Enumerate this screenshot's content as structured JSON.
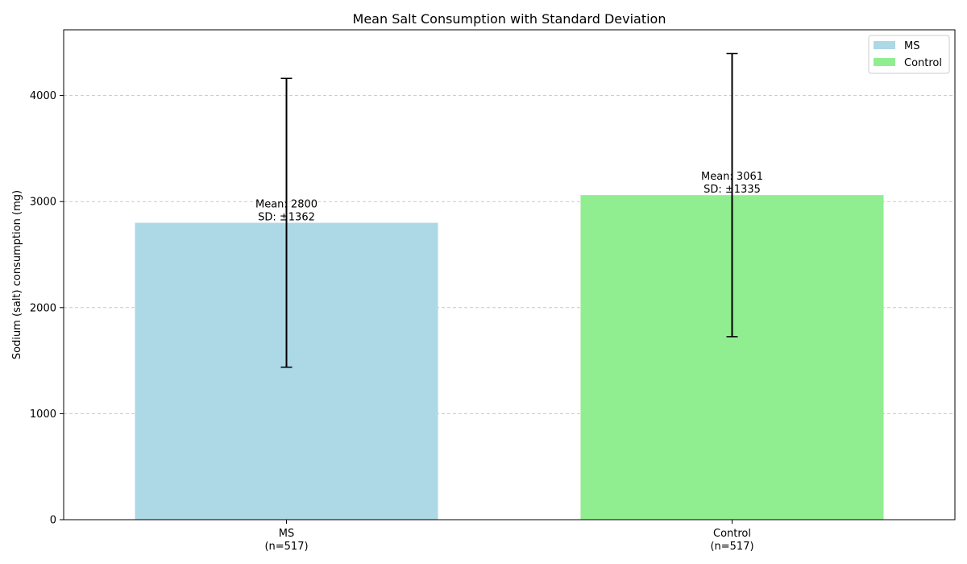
{
  "chart_data": {
    "type": "bar",
    "title": "Mean Salt Consumption with Standard Deviation",
    "ylabel": "Sodium (salt) consumption (mg)",
    "xlabel": "",
    "ylim": [
      0,
      4620
    ],
    "yticks": [
      0,
      1000,
      2000,
      3000,
      4000
    ],
    "grid": "y-dashed",
    "legend_position": "top-right",
    "categories": [
      {
        "name": "MS",
        "n_label": "(n=517)"
      },
      {
        "name": "Control",
        "n_label": "(n=517)"
      }
    ],
    "series": [
      {
        "name": "MS",
        "mean": 2800,
        "sd": 1362,
        "color": "#add8e6",
        "label_line1": "Mean: 2800",
        "label_line2": "SD: ±1362"
      },
      {
        "name": "Control",
        "mean": 3061,
        "sd": 1335,
        "color": "#90ee90",
        "label_line1": "Mean: 3061",
        "label_line2": "SD: ±1335"
      }
    ]
  }
}
